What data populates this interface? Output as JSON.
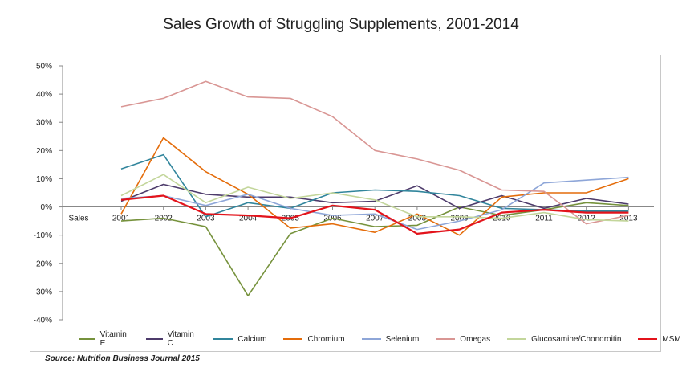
{
  "title": "Sales Growth of Struggling Supplements, 2001-2014",
  "source": "Source: Nutrition Business Journal 2015",
  "chart_data": {
    "type": "line",
    "title": "Sales Growth of Struggling Supplements, 2001-2014",
    "category_axis_label": "Sales",
    "categories": [
      "2001",
      "2002",
      "2003",
      "2004",
      "2005",
      "2006",
      "2007",
      "2008",
      "2009",
      "2010",
      "2011",
      "2012",
      "2013"
    ],
    "ylim": [
      -40,
      50
    ],
    "yticks": [
      -40,
      -30,
      -20,
      -10,
      0,
      10,
      20,
      30,
      40,
      50
    ],
    "ytick_labels": [
      "-40%",
      "-30%",
      "-20%",
      "-10%",
      "0%",
      "10%",
      "20%",
      "30%",
      "40%",
      "50%"
    ],
    "grid": false,
    "legend_position": "bottom",
    "series": [
      {
        "name": "Vitamin E",
        "color": "#76923c",
        "values": [
          -5,
          -4,
          -7,
          -31.5,
          -9.5,
          -4,
          -7,
          -6.5,
          0,
          -3,
          -1,
          1.5,
          0.5
        ]
      },
      {
        "name": "Vitamin C",
        "color": "#4d3b6b",
        "values": [
          2,
          8,
          4.5,
          3.5,
          3.5,
          1.5,
          2,
          7.5,
          -0.5,
          4,
          -0.5,
          3,
          1
        ]
      },
      {
        "name": "Calcium",
        "color": "#31859c",
        "values": [
          13.5,
          18.5,
          -3.5,
          1.5,
          -0.5,
          5,
          6,
          5.5,
          4,
          -0.5,
          -1,
          -1.5,
          -1.5
        ]
      },
      {
        "name": "Chromium",
        "color": "#e46c0a",
        "values": [
          -2.5,
          24.5,
          12.5,
          4.5,
          -7.5,
          -6,
          -9,
          -2.5,
          -10,
          3.5,
          5,
          5,
          10
        ]
      },
      {
        "name": "Selenium",
        "color": "#8ea6d8",
        "values": [
          3,
          4,
          0.5,
          4.5,
          -0.5,
          -3,
          -2.5,
          -8,
          -5,
          -1,
          8.5,
          9.5,
          10.5
        ]
      },
      {
        "name": "Omegas",
        "color": "#d99694",
        "values": [
          35.5,
          38.5,
          44.5,
          39,
          38.5,
          32,
          20,
          17,
          13,
          6,
          5.5,
          -6,
          -3
        ]
      },
      {
        "name": "Glucosamine/Chondroitin",
        "color": "#c3d69b",
        "values": [
          4,
          11.5,
          1.5,
          7,
          3,
          5,
          2.5,
          -3.5,
          -3.5,
          -4,
          -2,
          -4.5,
          -5
        ]
      },
      {
        "name": "MSM",
        "color": "#e3131b",
        "values": [
          2.5,
          4,
          -2.5,
          -3,
          -4,
          0.5,
          -1,
          -9.5,
          -8,
          -2,
          -1,
          -2,
          -2
        ]
      }
    ]
  }
}
